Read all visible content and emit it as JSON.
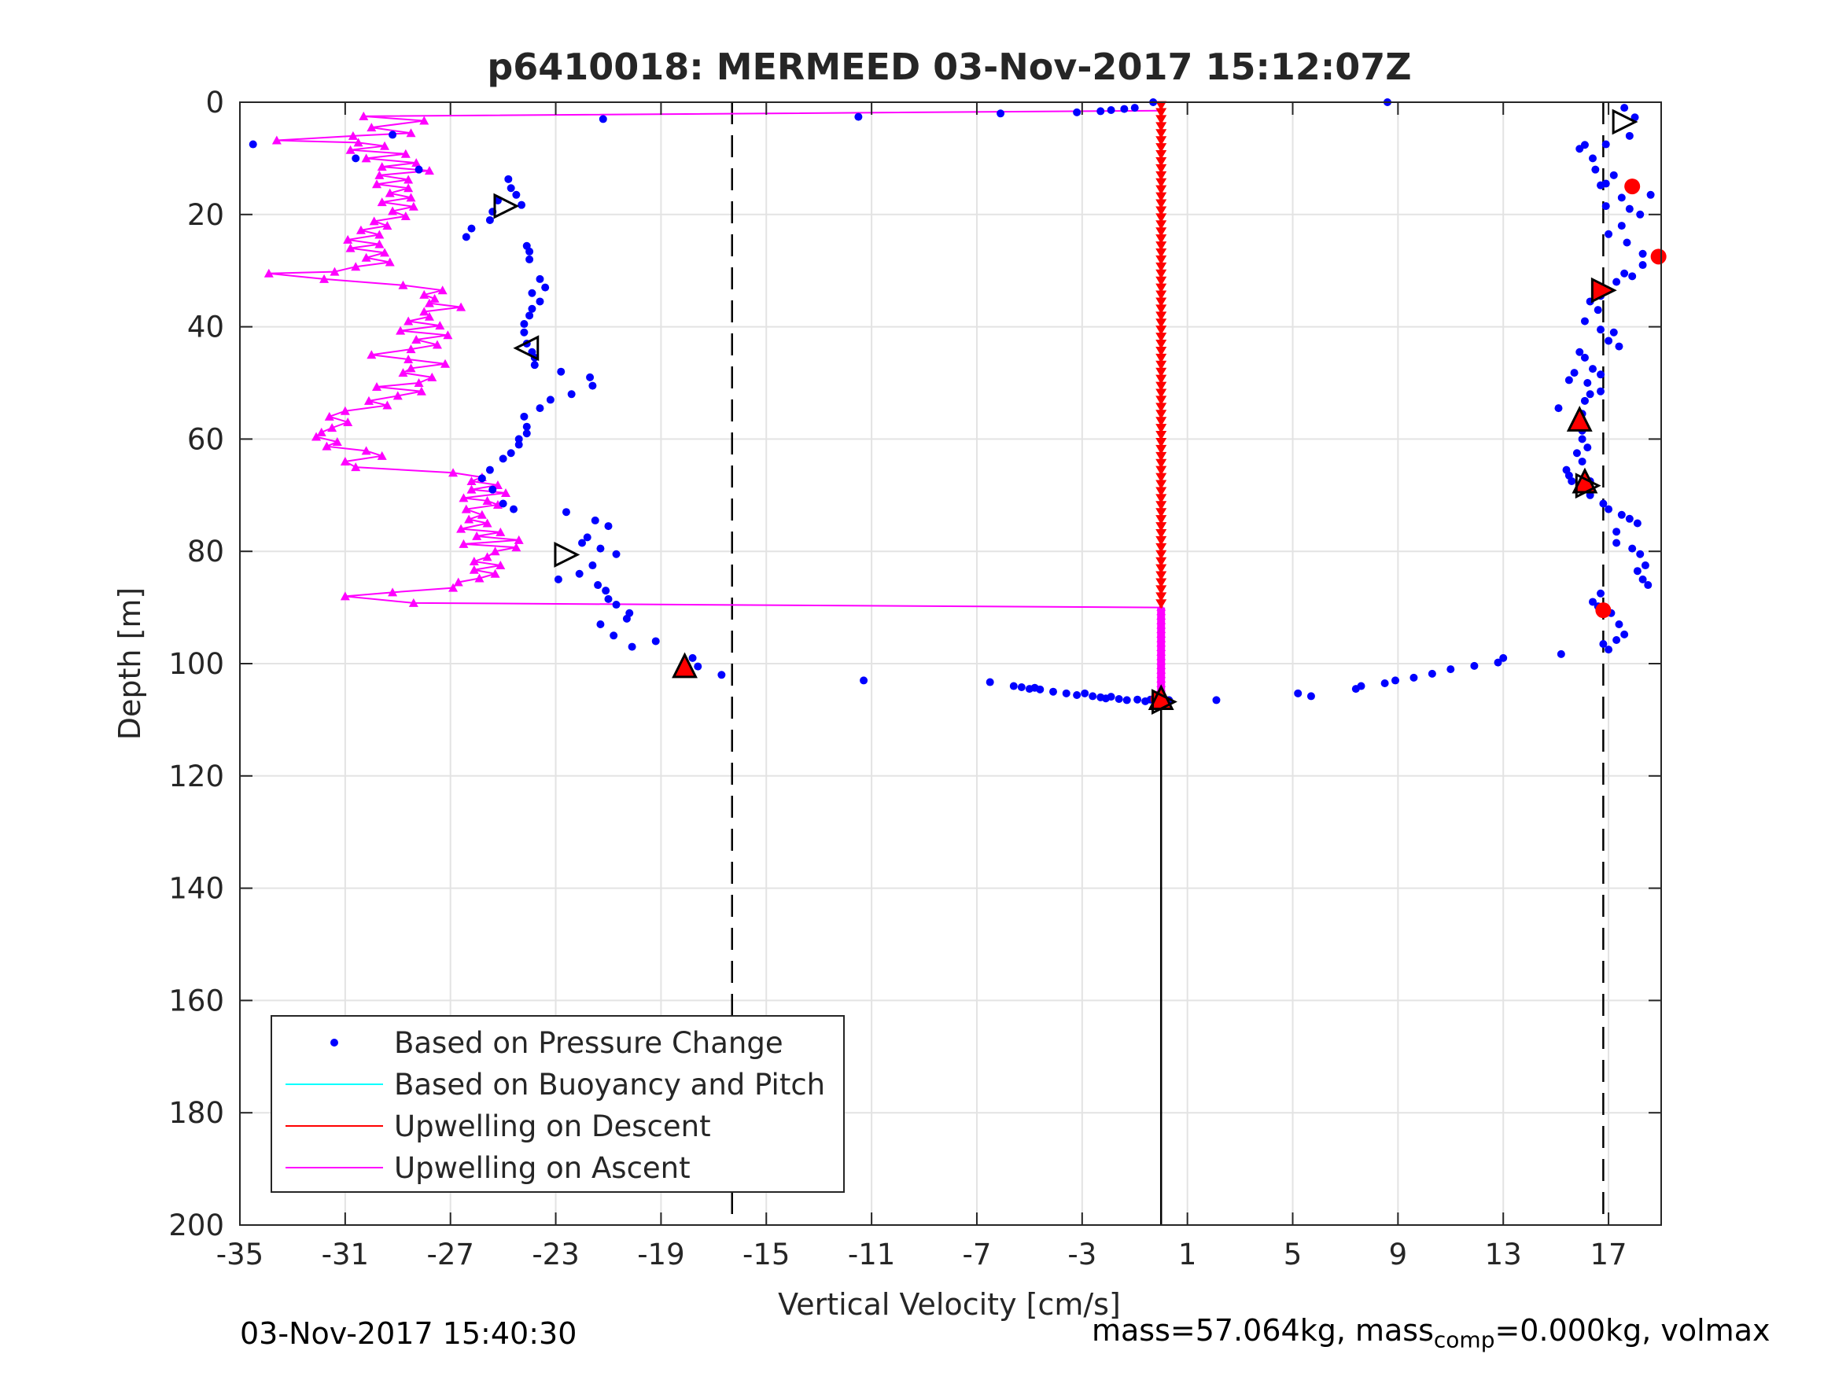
{
  "chart_data": {
    "type": "scatter",
    "title": "p6410018: MERMEED 03-Nov-2017 15:12:07Z",
    "xlabel": "Vertical Velocity [cm/s]",
    "ylabel": "Depth [m]",
    "xlim": [
      -35,
      19
    ],
    "ylim": [
      0,
      200
    ],
    "y_reversed": true,
    "grid": true,
    "legend_position": "bottom-left",
    "xticks": [
      -35,
      -31,
      -27,
      -23,
      -19,
      -15,
      -11,
      -7,
      -3,
      1,
      5,
      9,
      13,
      17
    ],
    "xtick_labels": [
      "-35",
      "-31",
      "-27",
      "-23",
      "-19",
      "-15",
      "-11",
      "-7",
      "-3",
      "1",
      "5",
      "9",
      "13",
      "17"
    ],
    "yticks": [
      0,
      20,
      40,
      60,
      80,
      100,
      120,
      140,
      160,
      180,
      200
    ],
    "ytick_labels": [
      "0",
      "20",
      "40",
      "60",
      "80",
      "100",
      "120",
      "140",
      "160",
      "180",
      "200"
    ],
    "legend": [
      {
        "label": "Based on Pressure Change",
        "color": "#0000ff",
        "marker": "dot"
      },
      {
        "label": "Based on Buoyancy and Pitch",
        "color": "#00ffff",
        "marker": "line"
      },
      {
        "label": "Upwelling on Descent",
        "color": "#ff0000",
        "marker": "line"
      },
      {
        "label": "Upwelling on Ascent",
        "color": "#ff00ff",
        "marker": "line"
      }
    ],
    "reference_lines": [
      {
        "x": -16.3,
        "style": "dashed",
        "color": "#000000"
      },
      {
        "x": 16.8,
        "style": "dashed",
        "color": "#000000"
      },
      {
        "x": 0,
        "style": "solid",
        "color": "#000000",
        "y_from": 106,
        "y_to": 200
      }
    ],
    "pressure_change": {
      "color": "#0000ff",
      "points": [
        [
          -34.5,
          7.5
        ],
        [
          -30.6,
          10
        ],
        [
          -29.2,
          5.8
        ],
        [
          -28.2,
          12
        ],
        [
          -21.2,
          3
        ],
        [
          -11.5,
          2.6
        ],
        [
          -6.1,
          2
        ],
        [
          -3.2,
          1.8
        ],
        [
          -2.3,
          1.6
        ],
        [
          -1.9,
          1.4
        ],
        [
          -1.4,
          1.2
        ],
        [
          -1,
          1
        ],
        [
          -0.3,
          0
        ],
        [
          8.6,
          0
        ],
        [
          -24.8,
          13.7
        ],
        [
          -24.7,
          15.3
        ],
        [
          -24.5,
          16.5
        ],
        [
          -25.2,
          17.5
        ],
        [
          -24.3,
          18.3
        ],
        [
          -25.4,
          19.5
        ],
        [
          -25.5,
          21
        ],
        [
          -26.2,
          22.5
        ],
        [
          -26.4,
          24
        ],
        [
          -24.1,
          25.6
        ],
        [
          -24,
          26.6
        ],
        [
          -24,
          28
        ],
        [
          -23.6,
          31.5
        ],
        [
          -23.4,
          33
        ],
        [
          -23.9,
          34
        ],
        [
          -23.6,
          35.5
        ],
        [
          -23.9,
          36.8
        ],
        [
          -24,
          38
        ],
        [
          -24.2,
          39.5
        ],
        [
          -24.2,
          41
        ],
        [
          -24.1,
          43
        ],
        [
          -23.9,
          44.5
        ],
        [
          -23.8,
          45.5
        ],
        [
          -23.8,
          46.8
        ],
        [
          -22.8,
          48
        ],
        [
          -21.7,
          49
        ],
        [
          -21.6,
          50.5
        ],
        [
          -22.4,
          52
        ],
        [
          -23.2,
          53
        ],
        [
          -23.6,
          54.5
        ],
        [
          -24.2,
          56
        ],
        [
          -24.1,
          57.8
        ],
        [
          -24.1,
          59
        ],
        [
          -24.4,
          60
        ],
        [
          -24.4,
          61
        ],
        [
          -24.7,
          62.5
        ],
        [
          -25,
          63.5
        ],
        [
          -25.5,
          65.5
        ],
        [
          -25.8,
          67
        ],
        [
          -25.4,
          69
        ],
        [
          -25,
          71.5
        ],
        [
          -24.6,
          72.5
        ],
        [
          -22.6,
          73
        ],
        [
          -21.5,
          74.5
        ],
        [
          -21,
          75.5
        ],
        [
          -21.8,
          77.5
        ],
        [
          -22,
          78.5
        ],
        [
          -21.3,
          79.5
        ],
        [
          -20.7,
          80.5
        ],
        [
          -21.6,
          82.5
        ],
        [
          -22.1,
          84
        ],
        [
          -22.9,
          85
        ],
        [
          -21.4,
          86
        ],
        [
          -21.1,
          87
        ],
        [
          -21,
          88.5
        ],
        [
          -20.7,
          89.5
        ],
        [
          -20.2,
          91
        ],
        [
          -20.3,
          92
        ],
        [
          -21.3,
          93
        ],
        [
          -20.8,
          95
        ],
        [
          -20.1,
          97
        ],
        [
          -19.2,
          96
        ],
        [
          -17.8,
          99
        ],
        [
          -17.6,
          100.5
        ],
        [
          -16.7,
          102
        ],
        [
          -11.3,
          103
        ],
        [
          -6.5,
          103.3
        ],
        [
          -5.6,
          104
        ],
        [
          -5.3,
          104.2
        ],
        [
          -5,
          104.5
        ],
        [
          -4.8,
          104.3
        ],
        [
          -4.6,
          104.6
        ],
        [
          -4.1,
          105
        ],
        [
          -3.6,
          105.3
        ],
        [
          -3.2,
          105.6
        ],
        [
          -2.9,
          105.3
        ],
        [
          -2.6,
          105.8
        ],
        [
          -2.3,
          106
        ],
        [
          -2.1,
          106.2
        ],
        [
          -1.9,
          105.9
        ],
        [
          -1.6,
          106.3
        ],
        [
          -1.3,
          106.5
        ],
        [
          -0.9,
          106.4
        ],
        [
          -0.6,
          106.7
        ],
        [
          -0.4,
          106.4
        ],
        [
          -0.1,
          106.6
        ],
        [
          0.3,
          106.5
        ],
        [
          2.1,
          106.5
        ],
        [
          5.2,
          105.3
        ],
        [
          5.7,
          105.8
        ],
        [
          7.4,
          104.5
        ],
        [
          7.6,
          104
        ],
        [
          8.5,
          103.5
        ],
        [
          8.9,
          103
        ],
        [
          9.6,
          102.5
        ],
        [
          10.3,
          101.8
        ],
        [
          11,
          101
        ],
        [
          11.9,
          100.4
        ],
        [
          12.8,
          99.8
        ],
        [
          13,
          99
        ],
        [
          15.2,
          98.3
        ],
        [
          18,
          2.7
        ],
        [
          17.6,
          1
        ],
        [
          17.8,
          6
        ],
        [
          16.9,
          7.5
        ],
        [
          15.9,
          8.3
        ],
        [
          16.1,
          7.6
        ],
        [
          16.4,
          10
        ],
        [
          16.5,
          12
        ],
        [
          17.2,
          13
        ],
        [
          16.9,
          14.5
        ],
        [
          16.7,
          14.8
        ],
        [
          17.5,
          17
        ],
        [
          18.6,
          16.5
        ],
        [
          16.9,
          18.5
        ],
        [
          17.8,
          19
        ],
        [
          18.2,
          20
        ],
        [
          17.5,
          22
        ],
        [
          17,
          23.5
        ],
        [
          17.7,
          25
        ],
        [
          18.3,
          27
        ],
        [
          18.3,
          29
        ],
        [
          17.6,
          30.5
        ],
        [
          17.3,
          32
        ],
        [
          17.9,
          31
        ],
        [
          16.7,
          34.5
        ],
        [
          16.3,
          35.5
        ],
        [
          16.6,
          37
        ],
        [
          16.1,
          39
        ],
        [
          16.7,
          40.5
        ],
        [
          17.2,
          41
        ],
        [
          17,
          42.5
        ],
        [
          17.4,
          43.5
        ],
        [
          15.9,
          44.5
        ],
        [
          16.1,
          45.5
        ],
        [
          16.4,
          47.5
        ],
        [
          16.7,
          48.5
        ],
        [
          15.7,
          48.2
        ],
        [
          15.5,
          49.5
        ],
        [
          16.2,
          50
        ],
        [
          16.7,
          51.5
        ],
        [
          16.3,
          52
        ],
        [
          16.1,
          53.2
        ],
        [
          15.1,
          54.5
        ],
        [
          16,
          55.5
        ],
        [
          16,
          58.5
        ],
        [
          16,
          60
        ],
        [
          16.2,
          61.5
        ],
        [
          15.8,
          62.5
        ],
        [
          16,
          64
        ],
        [
          15.4,
          65.5
        ],
        [
          15.5,
          66.5
        ],
        [
          16.3,
          67.5
        ],
        [
          15.6,
          67.5
        ],
        [
          15.9,
          68.5
        ],
        [
          16.3,
          70
        ],
        [
          16.8,
          71.5
        ],
        [
          17,
          72.5
        ],
        [
          17.5,
          73.5
        ],
        [
          17.8,
          74.2
        ],
        [
          18.1,
          75
        ],
        [
          17.3,
          76.5
        ],
        [
          17.3,
          78.5
        ],
        [
          17.9,
          79.5
        ],
        [
          18.2,
          80.5
        ],
        [
          18.4,
          82.5
        ],
        [
          18.1,
          83.5
        ],
        [
          18.3,
          85
        ],
        [
          18.5,
          86
        ],
        [
          16.7,
          87.5
        ],
        [
          16.4,
          89
        ],
        [
          16.6,
          89.8
        ],
        [
          17.1,
          91
        ],
        [
          17.4,
          93
        ],
        [
          17.6,
          94.8
        ],
        [
          17.3,
          95.8
        ],
        [
          16.8,
          96.5
        ],
        [
          17,
          97.5
        ]
      ]
    },
    "ascent_line": {
      "color": "#ff00ff",
      "points": [
        [
          0,
          1.5
        ],
        [
          -30.3,
          2.5
        ],
        [
          -28,
          3.3
        ],
        [
          -30,
          4.5
        ],
        [
          -28.5,
          5.5
        ],
        [
          -30.7,
          6
        ],
        [
          -33.6,
          6.8
        ],
        [
          -30.5,
          7.2
        ],
        [
          -29.5,
          7.8
        ],
        [
          -30.8,
          8.5
        ],
        [
          -28.7,
          9.2
        ],
        [
          -30.2,
          10
        ],
        [
          -28.3,
          10.8
        ],
        [
          -29.6,
          11.5
        ],
        [
          -27.8,
          12.2
        ],
        [
          -29.7,
          13
        ],
        [
          -28.6,
          13.8
        ],
        [
          -29.8,
          14.6
        ],
        [
          -28.6,
          15.3
        ],
        [
          -29.3,
          16.2
        ],
        [
          -28.5,
          17
        ],
        [
          -29.6,
          17.8
        ],
        [
          -28.4,
          18.6
        ],
        [
          -29.2,
          19.4
        ],
        [
          -28.7,
          20.3
        ],
        [
          -29.9,
          21.2
        ],
        [
          -29.4,
          22
        ],
        [
          -30.4,
          22.8
        ],
        [
          -29.7,
          23.6
        ],
        [
          -30.9,
          24.5
        ],
        [
          -29.7,
          25.3
        ],
        [
          -30.8,
          26
        ],
        [
          -29.5,
          26.8
        ],
        [
          -30.2,
          27.7
        ],
        [
          -29.3,
          28.5
        ],
        [
          -30.6,
          29.3
        ],
        [
          -31.4,
          30.2
        ],
        [
          -33.9,
          30.5
        ],
        [
          -31.8,
          31.5
        ],
        [
          -28.8,
          32.6
        ],
        [
          -27.3,
          33.5
        ],
        [
          -28,
          34.3
        ],
        [
          -27.6,
          35
        ],
        [
          -27.8,
          35.8
        ],
        [
          -26.6,
          36.5
        ],
        [
          -28,
          37.3
        ],
        [
          -27.8,
          38.2
        ],
        [
          -28.6,
          39
        ],
        [
          -27.4,
          39.8
        ],
        [
          -28.9,
          40.7
        ],
        [
          -27.1,
          41.5
        ],
        [
          -28.3,
          42.3
        ],
        [
          -27.5,
          43.2
        ],
        [
          -28.5,
          44
        ],
        [
          -30,
          45
        ],
        [
          -28.6,
          45.8
        ],
        [
          -27.2,
          46.6
        ],
        [
          -28.5,
          47.4
        ],
        [
          -28.8,
          48.2
        ],
        [
          -27.7,
          49
        ],
        [
          -28.2,
          50
        ],
        [
          -29.8,
          50.7
        ],
        [
          -28.1,
          51.5
        ],
        [
          -29,
          52.3
        ],
        [
          -30.1,
          53.2
        ],
        [
          -29.4,
          54
        ],
        [
          -31,
          55
        ],
        [
          -31.6,
          56
        ],
        [
          -30.9,
          57
        ],
        [
          -31.5,
          58
        ],
        [
          -31.9,
          58.8
        ],
        [
          -32.1,
          59.6
        ],
        [
          -31.3,
          60.5
        ],
        [
          -31.7,
          61.3
        ],
        [
          -30.2,
          62.1
        ],
        [
          -29.6,
          63
        ],
        [
          -31,
          64
        ],
        [
          -30.6,
          65
        ],
        [
          -26.9,
          66
        ],
        [
          -25.8,
          66.8
        ],
        [
          -26.2,
          67.5
        ],
        [
          -25.2,
          68.2
        ],
        [
          -26.2,
          69
        ],
        [
          -24.9,
          69.6
        ],
        [
          -26.5,
          70.5
        ],
        [
          -25.6,
          71
        ],
        [
          -25.2,
          71.7
        ],
        [
          -26.4,
          72.5
        ],
        [
          -25.8,
          73.5
        ],
        [
          -26.3,
          74.3
        ],
        [
          -25.6,
          75
        ],
        [
          -26.6,
          76
        ],
        [
          -25.1,
          76.6
        ],
        [
          -26,
          77.3
        ],
        [
          -24.4,
          78
        ],
        [
          -26.5,
          78.7
        ],
        [
          -24.5,
          79.3
        ],
        [
          -25.3,
          80
        ],
        [
          -25.6,
          81
        ],
        [
          -26.1,
          81.8
        ],
        [
          -25.1,
          82.5
        ],
        [
          -26.1,
          83.3
        ],
        [
          -25.3,
          84
        ],
        [
          -25.9,
          84.8
        ],
        [
          -26.7,
          85.5
        ],
        [
          -26.9,
          86.5
        ],
        [
          -29.2,
          87.3
        ],
        [
          -31,
          88
        ],
        [
          -28.4,
          89.2
        ],
        [
          0,
          90
        ]
      ]
    },
    "descent_line": {
      "color": "#ff0000",
      "x": 0,
      "y_from": 0,
      "y_to": 90
    },
    "ascent_column": {
      "color": "#ff00ff",
      "x": 0,
      "y_from": 90,
      "y_to": 106
    },
    "red_circles": [
      [
        18.9,
        27.5
      ],
      [
        17.9,
        15
      ],
      [
        16.8,
        90.5
      ],
      [
        -0.1,
        106.3
      ]
    ],
    "special_markers": [
      {
        "x": 17.6,
        "y": 3.5,
        "shape": "triangle-right",
        "fill": "none"
      },
      {
        "x": -24.9,
        "y": 18.5,
        "shape": "triangle-right",
        "fill": "none"
      },
      {
        "x": -24.1,
        "y": 43.8,
        "shape": "triangle-left",
        "fill": "none"
      },
      {
        "x": -22.6,
        "y": 80.6,
        "shape": "triangle-right",
        "fill": "none"
      },
      {
        "x": 16.8,
        "y": 33.5,
        "shape": "triangle-right",
        "fill": "#ff0000"
      },
      {
        "x": 15.9,
        "y": 56.5,
        "shape": "triangle-up",
        "fill": "#ff0000"
      },
      {
        "x": 16.1,
        "y": 67.5,
        "shape": "triangle-up",
        "fill": "#ff0000"
      },
      {
        "x": 16.2,
        "y": 68.3,
        "shape": "triangle-right",
        "fill": "none"
      },
      {
        "x": -18.1,
        "y": 100.4,
        "shape": "triangle-up",
        "fill": "#ff0000"
      },
      {
        "x": 0,
        "y": 106.1,
        "shape": "triangle-up",
        "fill": "#ff0000"
      },
      {
        "x": 0.1,
        "y": 106.8,
        "shape": "triangle-right",
        "fill": "none"
      }
    ]
  },
  "footer": {
    "timestamp": "03-Nov-2017 15:40:30",
    "mass_text": "mass=57.064kg, mass",
    "mass_sub": "comp",
    "mass_tail": "=0.000kg, volmax"
  }
}
